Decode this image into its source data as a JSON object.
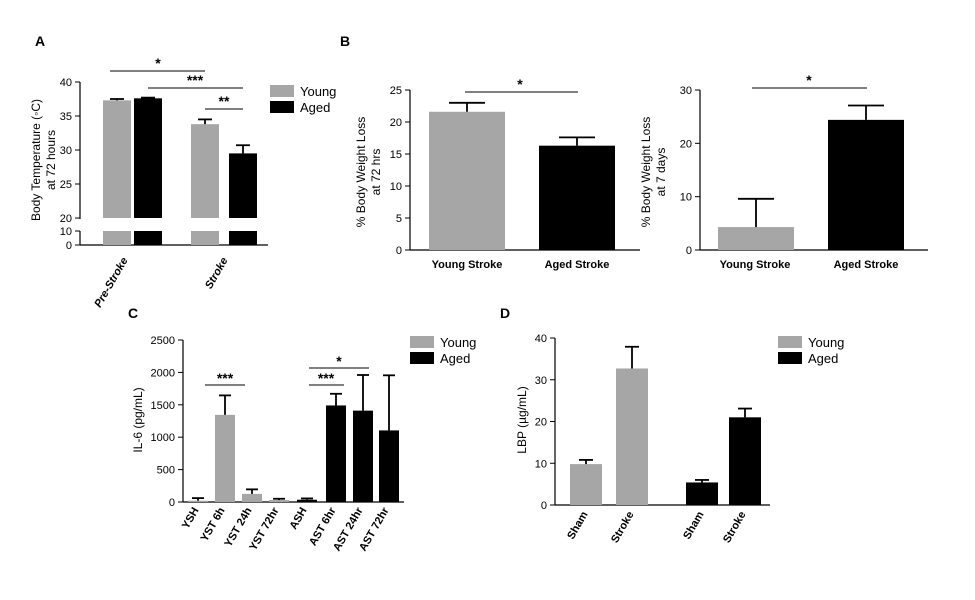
{
  "colors": {
    "young": "#a6a6a6",
    "aged": "#000000",
    "axis": "#000000"
  },
  "chart_data": [
    {
      "panel": "A",
      "type": "bar",
      "ylabel": "Body Temperature (°C) at 72 hours",
      "ylabel_lines": [
        "Body Temperature (◦C)",
        "at 72 hours"
      ],
      "ylim": [
        0,
        40
      ],
      "axis_break": [
        10,
        20
      ],
      "yticks": [
        "40",
        "35",
        "30",
        "25",
        "20",
        "10",
        "0"
      ],
      "categories": [
        "Pre-Stroke",
        "Stroke"
      ],
      "series": [
        {
          "name": "Young",
          "values": [
            37.3,
            33.8
          ],
          "errors": [
            0.2,
            0.7
          ]
        },
        {
          "name": "Aged",
          "values": [
            37.6,
            29.5
          ],
          "errors": [
            0.1,
            1.2
          ]
        }
      ],
      "legend": [
        "Young",
        "Aged"
      ],
      "annotations": [
        "*",
        "***",
        "**"
      ]
    },
    {
      "panel": "B",
      "type": "bar",
      "ylabel": "% Body Weight Loss at 72 hrs",
      "ylabel_lines": [
        "% Body Weight Loss",
        "at 72 hrs"
      ],
      "ylim": [
        0,
        25
      ],
      "yticks": [
        "25",
        "20",
        "15",
        "10",
        "5",
        "0"
      ],
      "categories": [
        "Young Stroke",
        "Aged Stroke"
      ],
      "values": [
        21.6,
        16.3
      ],
      "errors": [
        1.4,
        1.3
      ],
      "annotations": [
        "*"
      ]
    },
    {
      "panel": "B",
      "type": "bar",
      "ylabel": "% Body Weight Loss at 7 days",
      "ylabel_lines": [
        "% Body Weight Loss",
        "at 7 days"
      ],
      "ylim": [
        0,
        30
      ],
      "yticks": [
        "30",
        "20",
        "10",
        "0"
      ],
      "categories": [
        "Young Stroke",
        "Aged Stroke"
      ],
      "values": [
        4.3,
        24.4
      ],
      "errors": [
        5.3,
        2.7
      ],
      "annotations": [
        "*"
      ]
    },
    {
      "panel": "C",
      "type": "bar",
      "ylabel": "IL-6 (pg/mL)",
      "ylim": [
        0,
        2500
      ],
      "yticks": [
        "2500",
        "2000",
        "1500",
        "1000",
        "500",
        "0"
      ],
      "categories": [
        "YSH",
        "YST 6h",
        "YST 24h",
        "YST 72hr",
        "ASH",
        "AST 6hr",
        "AST 24hr",
        "AST 72hr"
      ],
      "values": [
        20,
        1345,
        125,
        30,
        35,
        1490,
        1410,
        1105
      ],
      "errors": [
        40,
        300,
        70,
        20,
        20,
        180,
        550,
        850
      ],
      "groups": [
        "young",
        "young",
        "young",
        "young",
        "aged",
        "aged",
        "aged",
        "aged"
      ],
      "legend": [
        "Young",
        "Aged"
      ],
      "annotations": [
        "***",
        "***",
        "*"
      ]
    },
    {
      "panel": "D",
      "type": "bar",
      "ylabel": "LBP (µg/mL)",
      "ylim": [
        0,
        40
      ],
      "yticks": [
        "40",
        "30",
        "20",
        "10",
        "0"
      ],
      "categories": [
        "Sham",
        "Stroke",
        "Sham",
        "Stroke"
      ],
      "values": [
        9.8,
        32.7,
        5.4,
        21.0
      ],
      "errors": [
        1.0,
        5.2,
        0.6,
        2.1
      ],
      "groups": [
        "young",
        "young",
        "aged",
        "aged"
      ],
      "legend": [
        "Young",
        "Aged"
      ]
    }
  ]
}
